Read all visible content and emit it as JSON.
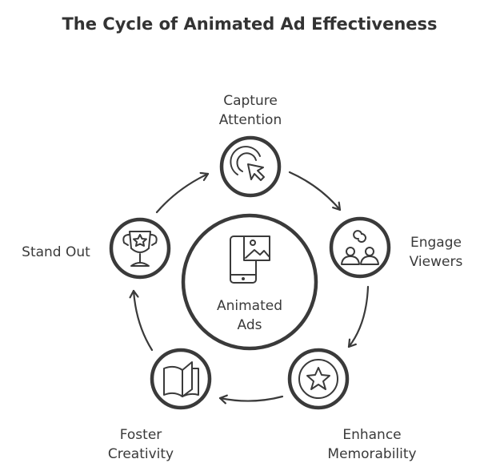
{
  "title": "The Cycle of Animated Ad Effectiveness",
  "center": {
    "line1": "Animated",
    "line2": "Ads",
    "icon": "mobile-image-icon"
  },
  "nodes": [
    {
      "line1": "Capture",
      "line2": "Attention",
      "icon": "cursor-click-icon"
    },
    {
      "line1": "Engage",
      "line2": "Viewers",
      "icon": "people-connect-icon"
    },
    {
      "line1": "Enhance",
      "line2": "Memorability",
      "icon": "star-badge-icon"
    },
    {
      "line1": "Foster",
      "line2": "Creativity",
      "icon": "open-book-icon"
    },
    {
      "line1": "Stand Out",
      "line2": "",
      "icon": "trophy-icon"
    }
  ],
  "colors": {
    "stroke": "#3a3a3a",
    "background": "#ffffff"
  }
}
